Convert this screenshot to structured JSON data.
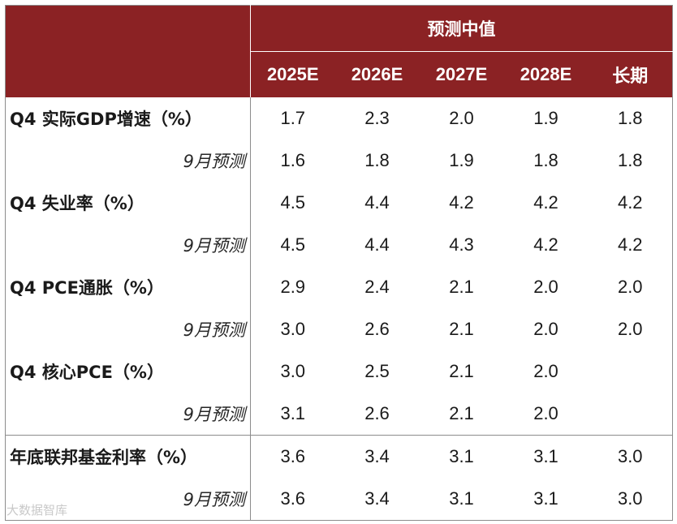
{
  "table": {
    "group_header": "预测中值",
    "columns": [
      "2025E",
      "2026E",
      "2027E",
      "2028E",
      "长期"
    ],
    "rows": [
      {
        "label": "Q4 实际GDP增速（%）",
        "style": "label",
        "values": [
          "1.7",
          "2.3",
          "2.0",
          "1.9",
          "1.8"
        ]
      },
      {
        "label": "9月预测",
        "style": "sub",
        "values": [
          "1.6",
          "1.8",
          "1.9",
          "1.8",
          "1.8"
        ]
      },
      {
        "label": "Q4 失业率（%）",
        "style": "label",
        "values": [
          "4.5",
          "4.4",
          "4.2",
          "4.2",
          "4.2"
        ]
      },
      {
        "label": "9月预测",
        "style": "sub",
        "values": [
          "4.5",
          "4.4",
          "4.3",
          "4.2",
          "4.2"
        ]
      },
      {
        "label": "Q4 PCE通胀（%）",
        "style": "label",
        "values": [
          "2.9",
          "2.4",
          "2.1",
          "2.0",
          "2.0"
        ]
      },
      {
        "label": "9月预测",
        "style": "sub",
        "values": [
          "3.0",
          "2.6",
          "2.1",
          "2.0",
          "2.0"
        ]
      },
      {
        "label": "Q4 核心PCE（%）",
        "style": "label",
        "values": [
          "3.0",
          "2.5",
          "2.1",
          "2.0",
          ""
        ]
      },
      {
        "label": "9月预测",
        "style": "sub",
        "values": [
          "3.1",
          "2.6",
          "2.1",
          "2.0",
          ""
        ]
      },
      {
        "label": "年底联邦基金利率（%）",
        "style": "label",
        "separator": true,
        "values": [
          "3.6",
          "3.4",
          "3.1",
          "3.1",
          "3.0"
        ]
      },
      {
        "label": "9月预测",
        "style": "sub",
        "values": [
          "3.6",
          "3.4",
          "3.1",
          "3.1",
          "3.0"
        ]
      }
    ]
  },
  "watermark": "大数据智库",
  "colors": {
    "header_bg": "#8b2224",
    "header_text": "#ffffff",
    "border": "#8c8c8c"
  }
}
